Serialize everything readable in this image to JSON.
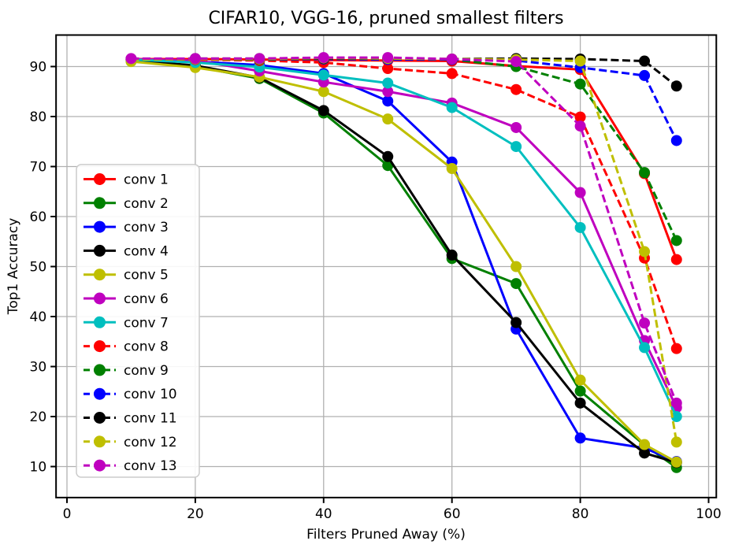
{
  "chart_data": {
    "type": "line",
    "title": "CIFAR10, VGG-16, pruned smallest filters",
    "xlabel": "Filters Pruned Away (%)",
    "ylabel": "Top1 Accuracy",
    "x": [
      10,
      20,
      30,
      40,
      50,
      60,
      70,
      80,
      90,
      95
    ],
    "xticks": [
      0,
      20,
      40,
      60,
      80,
      100
    ],
    "yticks": [
      10,
      20,
      30,
      40,
      50,
      60,
      70,
      80,
      90
    ],
    "xlim": [
      -1.7,
      101.2
    ],
    "ylim": [
      3.8,
      96.3
    ],
    "grid": true,
    "grid_color": "#b0b0b0",
    "background_color": "#ffffff",
    "legend_position": "center left",
    "series": [
      {
        "name": "conv 1",
        "color": "#ff0000",
        "style": "solid",
        "values": [
          91.5,
          91.5,
          91.4,
          91.3,
          91.2,
          91.1,
          90.1,
          89.4,
          68.6,
          51.4
        ]
      },
      {
        "name": "conv 2",
        "color": "#008000",
        "style": "solid",
        "values": [
          91.2,
          90.0,
          87.6,
          80.7,
          70.2,
          51.6,
          46.6,
          25.1,
          14.3,
          9.8
        ]
      },
      {
        "name": "conv 3",
        "color": "#0000ff",
        "style": "solid",
        "values": [
          91.4,
          91.0,
          90.3,
          88.6,
          83.1,
          70.9,
          37.5,
          15.7,
          13.7,
          11.0
        ]
      },
      {
        "name": "conv 4",
        "color": "#000000",
        "style": "solid",
        "values": [
          91.3,
          90.2,
          87.8,
          81.2,
          72.0,
          52.3,
          38.8,
          22.7,
          12.7,
          10.8
        ]
      },
      {
        "name": "conv 5",
        "color": "#bfbf00",
        "style": "solid",
        "values": [
          91.0,
          89.8,
          87.9,
          85.0,
          79.5,
          69.6,
          50.0,
          27.3,
          14.4,
          10.9
        ]
      },
      {
        "name": "conv 6",
        "color": "#bf00bf",
        "style": "solid",
        "values": [
          91.5,
          91.2,
          89.1,
          86.9,
          85.0,
          82.7,
          77.8,
          64.8,
          35.2,
          21.8
        ]
      },
      {
        "name": "conv 7",
        "color": "#00bfbf",
        "style": "solid",
        "values": [
          91.4,
          90.8,
          89.9,
          88.3,
          86.7,
          81.8,
          74.0,
          57.8,
          33.8,
          20.0
        ]
      },
      {
        "name": "conv 8",
        "color": "#ff0000",
        "style": "dashed",
        "values": [
          91.5,
          91.4,
          91.2,
          90.8,
          89.6,
          88.6,
          85.4,
          79.9,
          51.7,
          33.6
        ]
      },
      {
        "name": "conv 9",
        "color": "#008000",
        "style": "dashed",
        "values": [
          91.5,
          91.5,
          91.4,
          91.5,
          91.5,
          91.4,
          90.0,
          86.5,
          68.8,
          55.2
        ]
      },
      {
        "name": "conv 10",
        "color": "#0000ff",
        "style": "dashed",
        "values": [
          91.5,
          91.5,
          91.5,
          91.5,
          91.4,
          91.4,
          91.2,
          89.8,
          88.2,
          75.2
        ]
      },
      {
        "name": "conv 11",
        "color": "#000000",
        "style": "dashed",
        "values": [
          91.5,
          91.6,
          91.6,
          91.6,
          91.6,
          91.5,
          91.6,
          91.5,
          91.1,
          86.1
        ]
      },
      {
        "name": "conv 12",
        "color": "#bfbf00",
        "style": "dashed",
        "values": [
          91.4,
          91.5,
          91.5,
          91.7,
          91.6,
          91.5,
          91.4,
          91.1,
          53.0,
          14.9
        ]
      },
      {
        "name": "conv 13",
        "color": "#bf00bf",
        "style": "dashed",
        "values": [
          91.6,
          91.6,
          91.6,
          91.8,
          91.8,
          91.5,
          91.0,
          78.1,
          38.7,
          22.7
        ]
      }
    ]
  }
}
